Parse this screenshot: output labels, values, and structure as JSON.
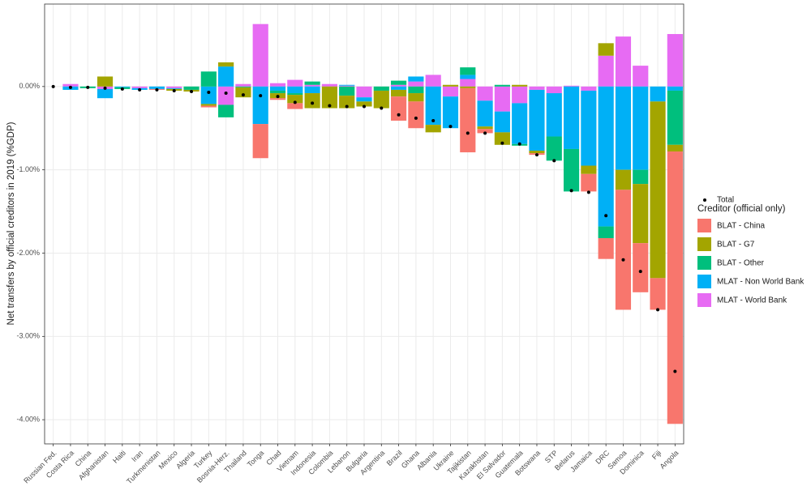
{
  "chart_data": {
    "type": "bar",
    "stacked": true,
    "y_label": "Net transfers by official creditors in 2019 (%GDP)",
    "categories": [
      "Russian Fed.",
      "Costa Rica",
      "China",
      "Afghanistan",
      "Haiti",
      "Iran",
      "Turkmenistan",
      "Mexico",
      "Algeria",
      "Turkey",
      "Bosnia-Herz.",
      "Thailand",
      "Tonga",
      "Chad",
      "Vietnam",
      "Indonesia",
      "Colombia",
      "Lebanon",
      "Bulgaria",
      "Argentina",
      "Brazil",
      "Ghana",
      "Albania",
      "Ukraine",
      "Tajikistan",
      "Kazakhstan",
      "El Salvador",
      "Guatemala",
      "Botswana",
      "STP",
      "Belarus",
      "Jamaica",
      "DRC",
      "Samoa",
      "Dominica",
      "Fiji",
      "Angola"
    ],
    "legend_title": "Creditor (official only)",
    "series": [
      {
        "name": "BLAT - China",
        "color": "#F8766D",
        "values": [
          0,
          0,
          0,
          0,
          0,
          0,
          -0.01,
          0,
          0,
          -0.02,
          0,
          0,
          -0.41,
          -0.02,
          -0.07,
          0,
          0,
          0,
          0,
          0,
          -0.29,
          -0.32,
          0,
          0,
          -0.77,
          -0.05,
          0,
          0,
          -0.02,
          0,
          0,
          -0.21,
          -0.25,
          -1.44,
          -0.59,
          -0.38,
          -3.27
        ]
      },
      {
        "name": "BLAT - G7",
        "color": "#A3A500",
        "values": [
          0,
          0,
          0,
          0.12,
          0,
          0,
          0,
          -0.02,
          -0.02,
          -0.02,
          0.05,
          -0.12,
          0,
          -0.06,
          -0.1,
          -0.18,
          -0.26,
          -0.15,
          -0.06,
          -0.21,
          -0.08,
          -0.1,
          -0.09,
          0.02,
          -0.02,
          -0.03,
          -0.15,
          0.02,
          -0.03,
          0,
          0,
          -0.1,
          0.15,
          -0.24,
          -0.71,
          -2.12,
          -0.08
        ]
      },
      {
        "name": "BLAT - Other",
        "color": "#00BF7D",
        "values": [
          0,
          0,
          -0.02,
          0,
          -0.02,
          0,
          0,
          0,
          -0.04,
          0.18,
          -0.15,
          -0.01,
          0,
          -0.03,
          -0.02,
          0.04,
          0,
          -0.11,
          0,
          -0.05,
          0.05,
          -0.08,
          0,
          0,
          0.09,
          0,
          0.02,
          -0.02,
          0,
          -0.29,
          -0.51,
          0,
          -0.14,
          0,
          -0.17,
          0,
          -0.65
        ]
      },
      {
        "name": "MLAT - Non World Bank",
        "color": "#00B0F6",
        "values": [
          0,
          -0.04,
          0,
          -0.11,
          -0.01,
          -0.02,
          -0.03,
          -0.01,
          0,
          -0.21,
          0.24,
          0,
          -0.45,
          -0.05,
          -0.08,
          -0.08,
          0,
          0.01,
          -0.05,
          0,
          -0.04,
          0.06,
          -0.46,
          -0.38,
          0.05,
          -0.31,
          -0.25,
          -0.49,
          -0.73,
          -0.52,
          -0.75,
          -0.9,
          -1.68,
          -1.0,
          -1.0,
          -0.18,
          -0.05
        ]
      },
      {
        "name": "MLAT - World Bank",
        "color": "#E76BF3",
        "values": [
          0,
          0.03,
          0,
          -0.03,
          0,
          -0.02,
          0,
          -0.02,
          0,
          0,
          -0.22,
          0.03,
          0.75,
          0.04,
          0.08,
          0.02,
          0.03,
          0.01,
          -0.13,
          0,
          0.02,
          0.06,
          0.14,
          -0.12,
          0.09,
          -0.17,
          -0.3,
          -0.2,
          -0.04,
          -0.08,
          0.01,
          -0.05,
          0.37,
          0.6,
          0.25,
          0,
          0.63
        ]
      }
    ],
    "total": {
      "name": "Total",
      "color": "#000000",
      "values": [
        0,
        -0.01,
        -0.01,
        -0.02,
        -0.03,
        -0.04,
        -0.04,
        -0.05,
        -0.06,
        -0.07,
        -0.08,
        -0.1,
        -0.11,
        -0.12,
        -0.19,
        -0.2,
        -0.23,
        -0.24,
        -0.24,
        -0.26,
        -0.34,
        -0.38,
        -0.41,
        -0.48,
        -0.56,
        -0.56,
        -0.68,
        -0.69,
        -0.82,
        -0.89,
        -1.25,
        -1.27,
        -1.55,
        -2.08,
        -2.22,
        -2.68,
        -3.42
      ]
    },
    "ylim": [
      -4.29,
      0.99
    ],
    "yticks": [
      {
        "value": 0,
        "label": "0.00%"
      },
      {
        "value": -1,
        "label": "-1.00%"
      },
      {
        "value": -2,
        "label": "-2.00%"
      },
      {
        "value": -3,
        "label": "-3.00%"
      },
      {
        "value": -4,
        "label": "-4.00%"
      }
    ],
    "grid": true
  }
}
